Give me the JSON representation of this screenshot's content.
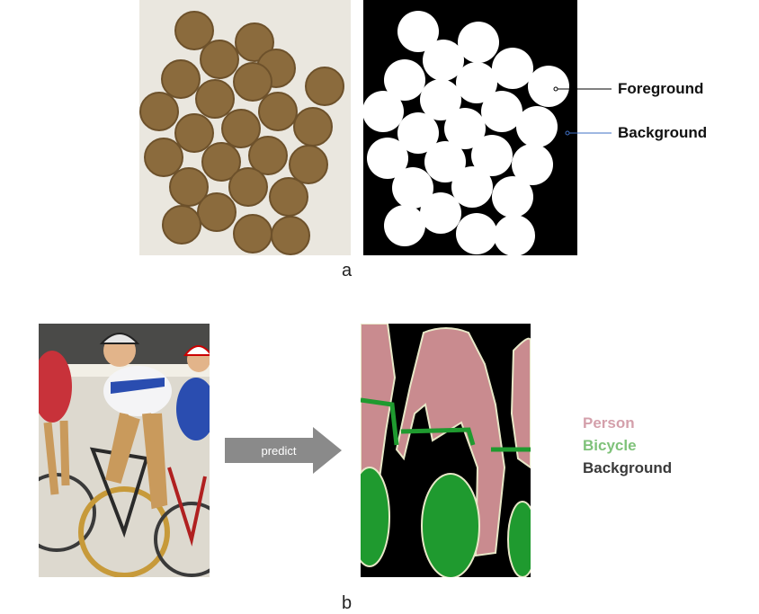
{
  "panel_a": {
    "letter": "a",
    "labels": {
      "foreground": "Foreground",
      "background": "Background"
    },
    "colors": {
      "photo_bg": "#eae7df",
      "coin": "#8b6b3d",
      "coin_edge": "#6d512b",
      "mask_bg": "#000000",
      "mask_fg": "#ffffff",
      "pointer_line": "#000000",
      "pointer_line_bg": "#3f6fc4"
    }
  },
  "panel_b": {
    "letter": "b",
    "arrow_label": "predict",
    "legend": [
      {
        "label": "Person",
        "color": "#d4a0ab"
      },
      {
        "label": "Bicycle",
        "color": "#7fc27a"
      },
      {
        "label": "Background",
        "color": "#3a3a3a"
      }
    ],
    "colors": {
      "arrow": "#8a8a8a",
      "seg_bg": "#000000",
      "seg_person": "#c98b8f",
      "seg_bicycle": "#1f9a2f",
      "seg_outline": "#e8e8c8",
      "photo_track": "#ddd9cf",
      "photo_crowd": "#4a4a48"
    }
  }
}
